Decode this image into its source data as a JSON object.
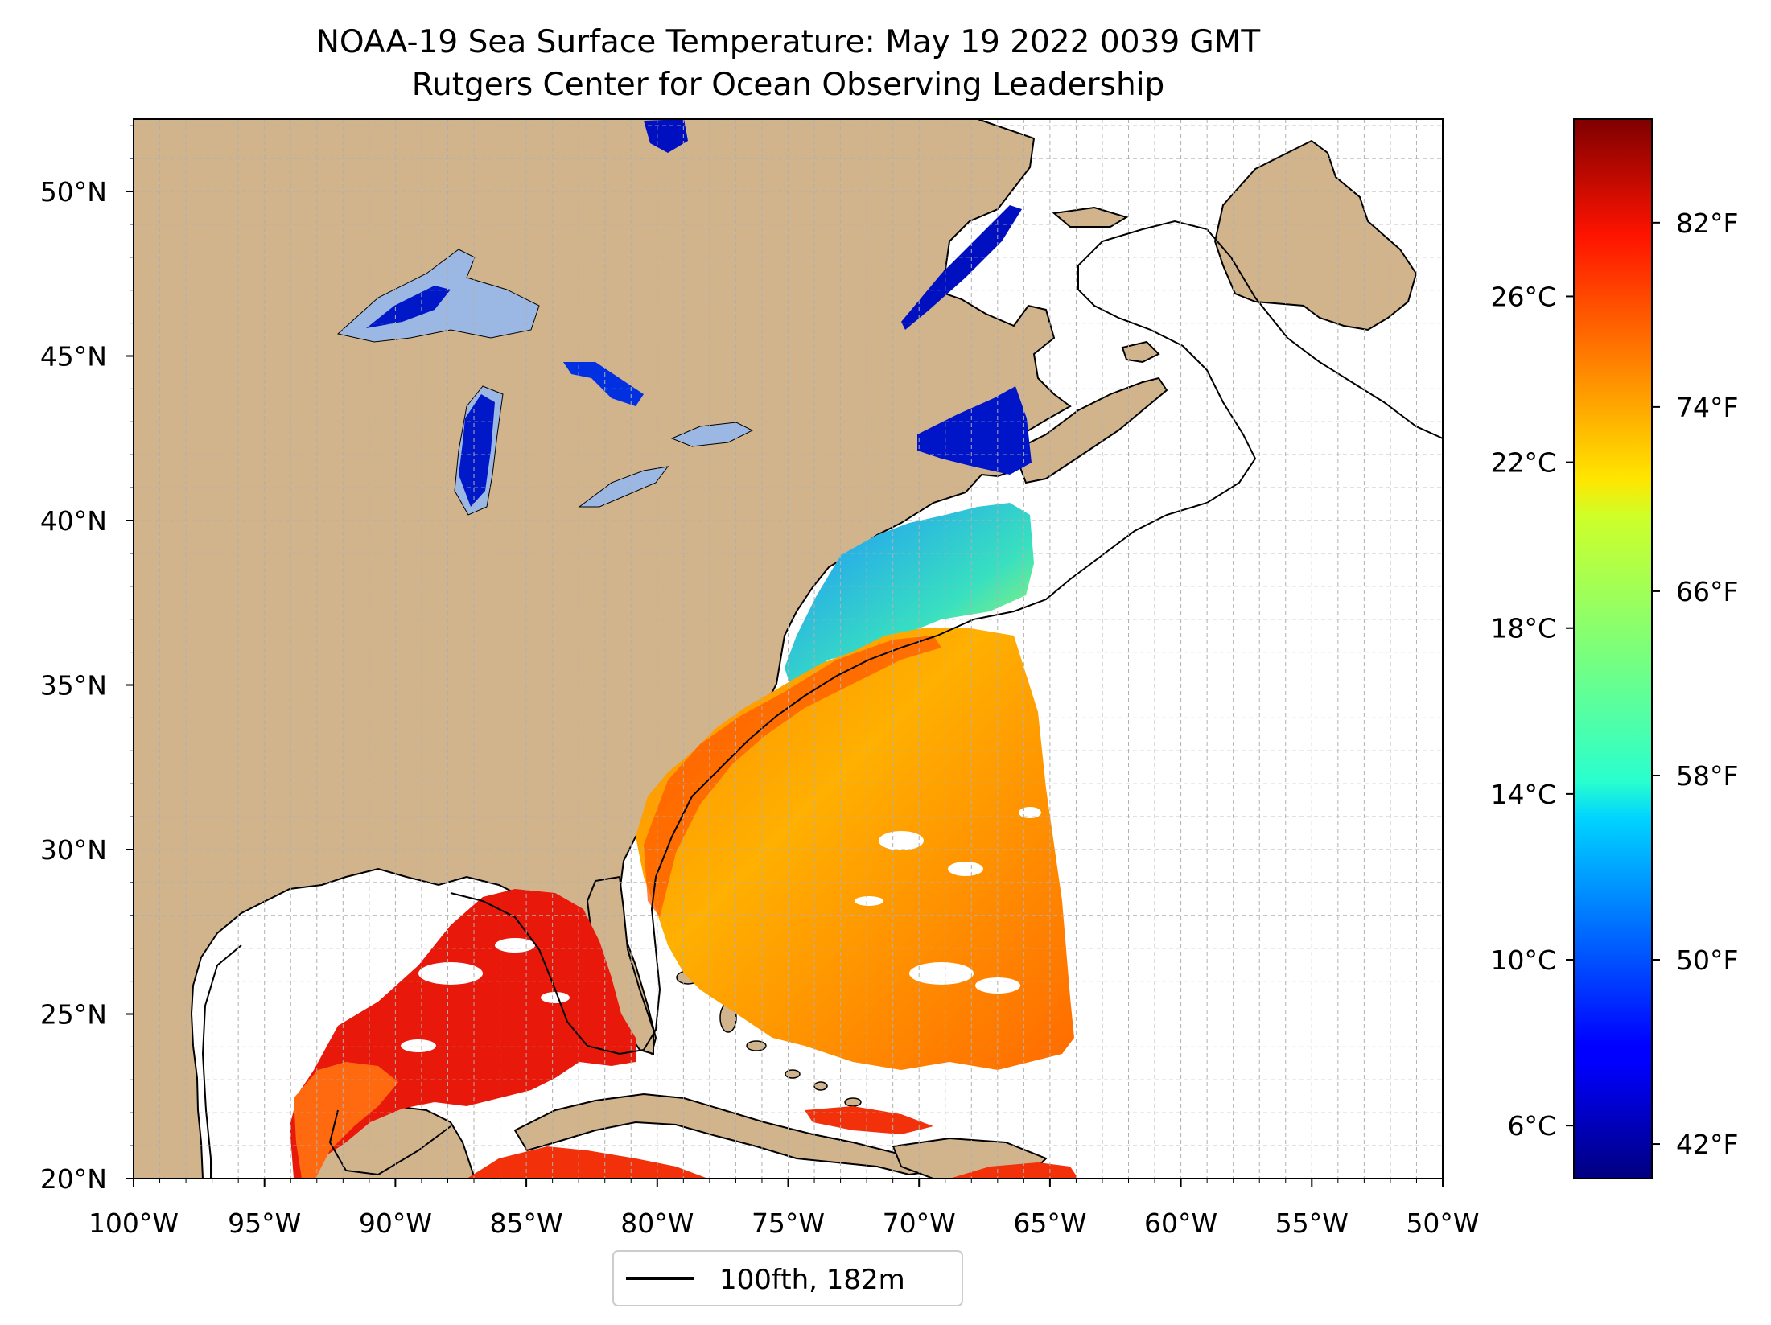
{
  "title": {
    "line1": "NOAA-19 Sea Surface Temperature: May 19 2022 0039 GMT",
    "line2": "Rutgers Center for Ocean Observing Leadership"
  },
  "map": {
    "lon_range": [
      -100,
      -50
    ],
    "lat_range": [
      20,
      52.2
    ],
    "x_ticks": [
      {
        "value": -100,
        "label": "100°W"
      },
      {
        "value": -95,
        "label": "95°W"
      },
      {
        "value": -90,
        "label": "90°W"
      },
      {
        "value": -85,
        "label": "85°W"
      },
      {
        "value": -80,
        "label": "80°W"
      },
      {
        "value": -75,
        "label": "75°W"
      },
      {
        "value": -70,
        "label": "70°W"
      },
      {
        "value": -65,
        "label": "65°W"
      },
      {
        "value": -60,
        "label": "60°W"
      },
      {
        "value": -55,
        "label": "55°W"
      },
      {
        "value": -50,
        "label": "50°W"
      }
    ],
    "y_ticks": [
      {
        "value": 20,
        "label": "20°N"
      },
      {
        "value": 25,
        "label": "25°N"
      },
      {
        "value": 30,
        "label": "30°N"
      },
      {
        "value": 35,
        "label": "35°N"
      },
      {
        "value": 40,
        "label": "40°N"
      },
      {
        "value": 45,
        "label": "45°N"
      },
      {
        "value": 50,
        "label": "50°N"
      }
    ],
    "grid": true,
    "colors": {
      "land": "#d2b48c",
      "lakes_no_data": "#9bb7e3",
      "ocean_no_data": "#ffffff",
      "border": "#000000",
      "grid": "#b0b0b0"
    }
  },
  "colorbar": {
    "colormap": "jet",
    "range_f": [
      40.5,
      86.5
    ],
    "fahrenheit_ticks": [
      {
        "value": 42,
        "label": "42°F"
      },
      {
        "value": 50,
        "label": "50°F"
      },
      {
        "value": 58,
        "label": "58°F"
      },
      {
        "value": 66,
        "label": "66°F"
      },
      {
        "value": 74,
        "label": "74°F"
      },
      {
        "value": 82,
        "label": "82°F"
      }
    ],
    "celsius_ticks": [
      {
        "value": 6,
        "label": "6°C"
      },
      {
        "value": 10,
        "label": "10°C"
      },
      {
        "value": 14,
        "label": "14°C"
      },
      {
        "value": 18,
        "label": "18°C"
      },
      {
        "value": 22,
        "label": "22°C"
      },
      {
        "value": 26,
        "label": "26°C"
      }
    ]
  },
  "legend": {
    "label": "100fth, 182m",
    "line_color": "#000000"
  }
}
